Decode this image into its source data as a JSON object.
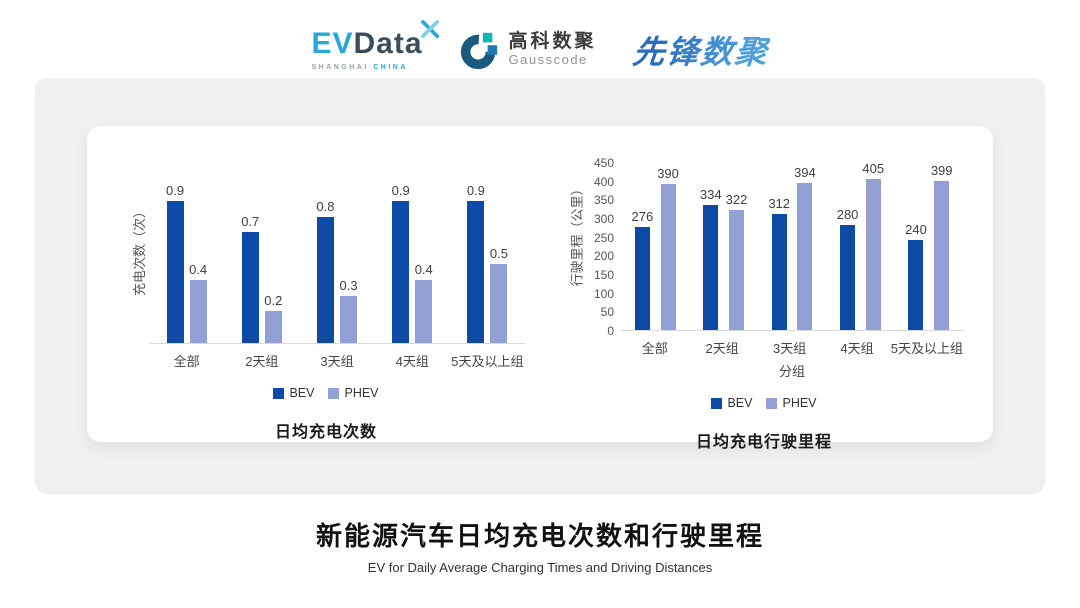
{
  "header": {
    "evdata": {
      "ev": "EV",
      "data": "Data",
      "sub_left": "SHANGHAI",
      "sub_right": "CHINA"
    },
    "gausscode": {
      "cn": "高科数聚",
      "en": "Gausscode"
    },
    "xianfeng": {
      "text": "先锋数聚"
    }
  },
  "colors": {
    "bev": "#0c4aa5",
    "phev": "#93a0d6",
    "baseline": "#d9d9d9",
    "gray_panel": "#f0f0f0"
  },
  "chart_data": [
    {
      "type": "bar",
      "title": "日均充电次数",
      "ylabel": "充电次数（次）",
      "xlabel": "",
      "categories": [
        "全部",
        "2天组",
        "3天组",
        "4天组",
        "5天及以上组"
      ],
      "series": [
        {
          "name": "BEV",
          "color": "#0c4aa5",
          "values": [
            0.9,
            0.7,
            0.8,
            0.9,
            0.9
          ]
        },
        {
          "name": "PHEV",
          "color": "#93a0d6",
          "values": [
            0.4,
            0.2,
            0.3,
            0.4,
            0.5
          ]
        }
      ],
      "ylim": [
        0,
        1
      ],
      "yticks": [],
      "grid": false,
      "legend_position": "bottom",
      "value_labels": true
    },
    {
      "type": "bar",
      "title": "日均充电行驶里程",
      "ylabel": "行驶里程（公里）",
      "xlabel": "分组",
      "categories": [
        "全部",
        "2天组",
        "3天组",
        "4天组",
        "5天及以上组"
      ],
      "series": [
        {
          "name": "BEV",
          "color": "#0c4aa5",
          "values": [
            276,
            334,
            312,
            280,
            240
          ]
        },
        {
          "name": "PHEV",
          "color": "#93a0d6",
          "values": [
            390,
            322,
            394,
            405,
            399
          ]
        }
      ],
      "ylim": [
        0,
        450
      ],
      "yticks": [
        0,
        50,
        100,
        150,
        200,
        250,
        300,
        350,
        400,
        450
      ],
      "grid": false,
      "legend_position": "bottom",
      "value_labels": true
    }
  ],
  "footer": {
    "title": "新能源汽车日均充电次数和行驶里程",
    "subtitle": "EV for Daily Average Charging Times and Driving Distances"
  }
}
